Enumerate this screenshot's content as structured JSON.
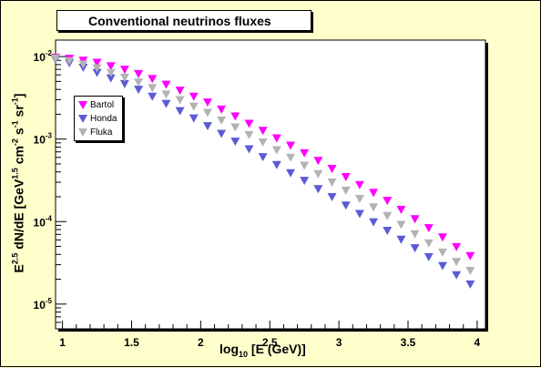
{
  "chart_data": {
    "type": "scatter",
    "title": "Conventional neutrinos fluxes",
    "xlabel": {
      "pre": "log",
      "sub": "10",
      "post": " [E (GeV)]"
    },
    "ylabel": {
      "p1": "E",
      "s1": "2.5",
      "p2": " dN/dE [GeV",
      "s2": "1.5",
      "p3": " cm",
      "s3": "-2",
      "p4": " s",
      "s4": "-1",
      "p5": " sr",
      "s5": "-1",
      "p6": "]"
    },
    "xlim": [
      0.95,
      4.06
    ],
    "ylim_log10": [
      -5.3,
      -1.8
    ],
    "y_scale": "log",
    "x_ticks": [
      "1",
      "1.5",
      "2",
      "2.5",
      "3",
      "3.5",
      "4"
    ],
    "y_ticks": [
      "10^-2",
      "10^-3",
      "10^-4",
      "10^-5"
    ],
    "legend_position": "upper-left",
    "series": [
      {
        "name": "Bartol",
        "color": "#ff00ff",
        "x": [
          0.95,
          1.05,
          1.15,
          1.25,
          1.35,
          1.45,
          1.55,
          1.65,
          1.75,
          1.85,
          1.95,
          2.05,
          2.15,
          2.25,
          2.35,
          2.45,
          2.55,
          2.65,
          2.75,
          2.85,
          2.95,
          3.05,
          3.15,
          3.25,
          3.35,
          3.45,
          3.55,
          3.65,
          3.75,
          3.85,
          3.95
        ],
        "y": [
          0.0098,
          0.0095,
          0.009,
          0.0085,
          0.0077,
          0.007,
          0.0062,
          0.0054,
          0.0046,
          0.0039,
          0.0033,
          0.0028,
          0.0023,
          0.0019,
          0.00155,
          0.00127,
          0.00103,
          0.00084,
          0.00068,
          0.00055,
          0.00044,
          0.00035,
          0.00028,
          0.000225,
          0.00018,
          0.00014,
          0.000108,
          8.4e-05,
          6.5e-05,
          4.95e-05,
          3.85e-05
        ]
      },
      {
        "name": "Honda",
        "color": "#5b5bd6",
        "x": [
          0.95,
          1.05,
          1.15,
          1.25,
          1.35,
          1.45,
          1.55,
          1.65,
          1.75,
          1.85,
          1.95,
          2.05,
          2.15,
          2.25,
          2.35,
          2.45,
          2.55,
          2.65,
          2.75,
          2.85,
          2.95,
          3.05,
          3.15,
          3.25,
          3.35,
          3.45,
          3.55,
          3.65,
          3.75,
          3.85,
          3.95
        ],
        "y": [
          0.0093,
          0.0084,
          0.0074,
          0.0064,
          0.0055,
          0.0047,
          0.004,
          0.0033,
          0.0027,
          0.0022,
          0.0018,
          0.00145,
          0.00117,
          0.00094,
          0.00076,
          0.00061,
          0.00049,
          0.00039,
          0.000315,
          0.00025,
          0.0002,
          0.000158,
          0.000125,
          9.9e-05,
          7.8e-05,
          6.1e-05,
          4.8e-05,
          3.75e-05,
          2.92e-05,
          2.26e-05,
          1.75e-05
        ]
      },
      {
        "name": "Fluka",
        "color": "#b3b3b3",
        "x": [
          0.95,
          1.05,
          1.15,
          1.25,
          1.35,
          1.45,
          1.55,
          1.65,
          1.75,
          1.85,
          1.95,
          2.05,
          2.15,
          2.25,
          2.35,
          2.45,
          2.55,
          2.65,
          2.75,
          2.85,
          2.95,
          3.05,
          3.15,
          3.25,
          3.35,
          3.45,
          3.55,
          3.65,
          3.75,
          3.85,
          3.95
        ],
        "y": [
          0.0096,
          0.0089,
          0.0081,
          0.0073,
          0.0064,
          0.0056,
          0.0049,
          0.0042,
          0.0035,
          0.003,
          0.0025,
          0.0021,
          0.0017,
          0.0014,
          0.00113,
          0.00092,
          0.00074,
          0.0006,
          0.00048,
          0.00038,
          0.0003,
          0.00024,
          0.00019,
          0.00015,
          0.000118,
          9.2e-05,
          7.1e-05,
          5.5e-05,
          4.25e-05,
          3.28e-05,
          2.55e-05
        ]
      }
    ]
  }
}
